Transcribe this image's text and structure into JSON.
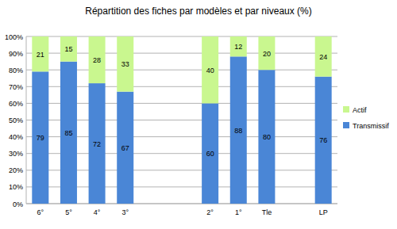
{
  "chart_data": {
    "type": "bar",
    "title": "Répartition des fiches par modèles et par niveaux (%)",
    "categories": [
      "6°",
      "5°",
      "4°",
      "3°",
      null,
      null,
      "2°",
      "1°",
      "Tle",
      null,
      "LP"
    ],
    "series": [
      {
        "name": "Transmissif",
        "color": "#4a86d6",
        "values": [
          79,
          85,
          72,
          67,
          null,
          null,
          60,
          88,
          80,
          null,
          76
        ]
      },
      {
        "name": "Actif",
        "color": "#c9f78f",
        "values": [
          21,
          15,
          28,
          33,
          null,
          null,
          40,
          12,
          20,
          null,
          24
        ]
      }
    ],
    "stacked": true,
    "data_labels": true,
    "legend": "right",
    "grid": true,
    "ylim": [
      0,
      100
    ],
    "yticks": [
      {
        "value": 0,
        "label": "0%"
      },
      {
        "value": 10,
        "label": "10%"
      },
      {
        "value": 20,
        "label": "20%"
      },
      {
        "value": 30,
        "label": "30%"
      },
      {
        "value": 40,
        "label": "40%"
      },
      {
        "value": 50,
        "label": "50%"
      },
      {
        "value": 60,
        "label": "60%"
      },
      {
        "value": 70,
        "label": "70%"
      },
      {
        "value": 80,
        "label": "80%"
      },
      {
        "value": 90,
        "label": "90%"
      },
      {
        "value": 100,
        "label": "100%"
      }
    ]
  }
}
